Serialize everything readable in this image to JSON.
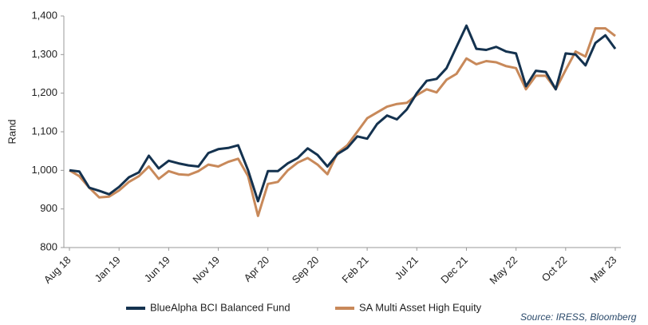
{
  "chart_data": {
    "type": "line",
    "y_label": "Rand",
    "source": "Source: IRESS, Bloomberg",
    "categories": [
      "Aug 18",
      null,
      null,
      null,
      null,
      "Jan 19",
      null,
      null,
      null,
      null,
      "Jun 19",
      null,
      null,
      null,
      null,
      "Nov 19",
      null,
      null,
      null,
      null,
      "Apr 20",
      null,
      null,
      null,
      null,
      "Sep 20",
      null,
      null,
      null,
      null,
      "Feb 21",
      null,
      null,
      null,
      null,
      "Jul 21",
      null,
      null,
      null,
      null,
      "Dec 21",
      null,
      null,
      null,
      null,
      "May 22",
      null,
      null,
      null,
      null,
      "Oct 22",
      null,
      null,
      null,
      null,
      "Mar 23"
    ],
    "series": [
      {
        "name": "BlueAlpha BCI Balanced Fund",
        "color": "#14324f",
        "values": [
          1000,
          997,
          955,
          947,
          938,
          957,
          982,
          995,
          1038,
          1005,
          1025,
          1018,
          1013,
          1010,
          1045,
          1055,
          1058,
          1065,
          1000,
          920,
          998,
          998,
          1018,
          1032,
          1057,
          1040,
          1010,
          1042,
          1058,
          1088,
          1082,
          1120,
          1142,
          1132,
          1158,
          1200,
          1232,
          1237,
          1265,
          1320,
          1375,
          1315,
          1312,
          1320,
          1308,
          1303,
          1218,
          1258,
          1255,
          1210,
          1303,
          1300,
          1272,
          1330,
          1350,
          1315
        ]
      },
      {
        "name": "SA Multi Asset High Equity",
        "color": "#c8895a",
        "values": [
          1000,
          985,
          955,
          930,
          932,
          948,
          970,
          985,
          1010,
          978,
          998,
          990,
          988,
          998,
          1015,
          1010,
          1022,
          1030,
          985,
          882,
          965,
          970,
          1000,
          1020,
          1032,
          1015,
          990,
          1045,
          1065,
          1100,
          1135,
          1150,
          1165,
          1172,
          1175,
          1195,
          1210,
          1202,
          1235,
          1250,
          1290,
          1275,
          1283,
          1280,
          1270,
          1265,
          1210,
          1245,
          1245,
          1210,
          1260,
          1308,
          1295,
          1368,
          1368,
          1348
        ]
      }
    ],
    "ylim": [
      800,
      1400
    ],
    "yticks": [
      800,
      900,
      {
        "value": 1000,
        "label": "1,000"
      },
      {
        "value": 1100,
        "label": "1,100"
      },
      {
        "value": 1200,
        "label": "1,200"
      },
      {
        "value": 1300,
        "label": "1,300"
      },
      {
        "value": 1400,
        "label": "1,400"
      }
    ],
    "grid": false,
    "legend": "bottom"
  }
}
